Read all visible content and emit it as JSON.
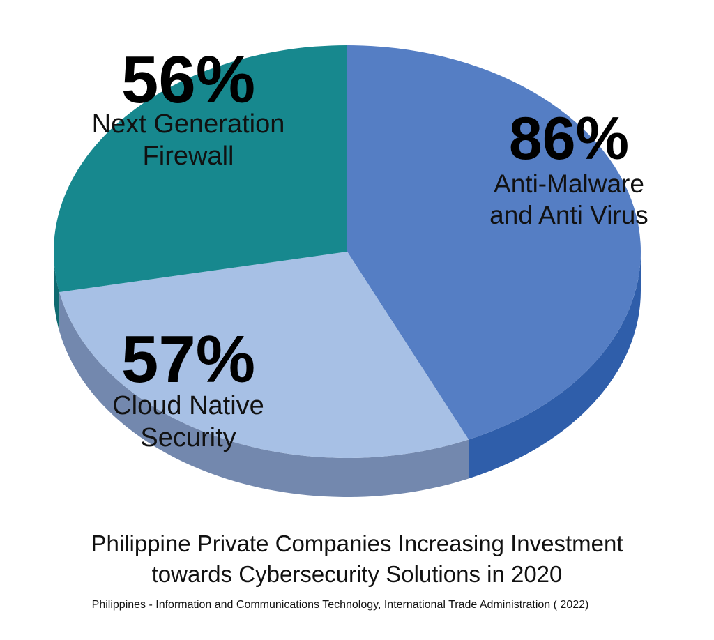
{
  "chart_data": {
    "type": "pie",
    "title": "Philippine Private Companies Increasing  Investment towards Cybersecurity Solutions in 2020",
    "title_lines": [
      "Philippine Private Companies Increasing  Investment",
      "towards Cybersecurity Solutions in 2020"
    ],
    "source": "Philippines - Information and Communications Technology, International Trade Administration ( 2022)",
    "slices": [
      {
        "label": "Anti-Malware and Anti Virus",
        "label_lines": [
          "Anti-Malware",
          "and Anti Virus"
        ],
        "value": 86,
        "value_label": "86%",
        "color": "#557EC4",
        "side_color": "#2F5EAA"
      },
      {
        "label": "Cloud Native Security",
        "label_lines": [
          "Cloud Native",
          "Security"
        ],
        "value": 57,
        "value_label": "57%",
        "color": "#A7C0E5",
        "side_color": "#7388AE"
      },
      {
        "label": "Next Generation Firewall",
        "label_lines": [
          "Next Generation",
          "Firewall"
        ],
        "value": 56,
        "value_label": "56%",
        "color": "#17888E",
        "side_color": "#0F6A70"
      }
    ]
  }
}
